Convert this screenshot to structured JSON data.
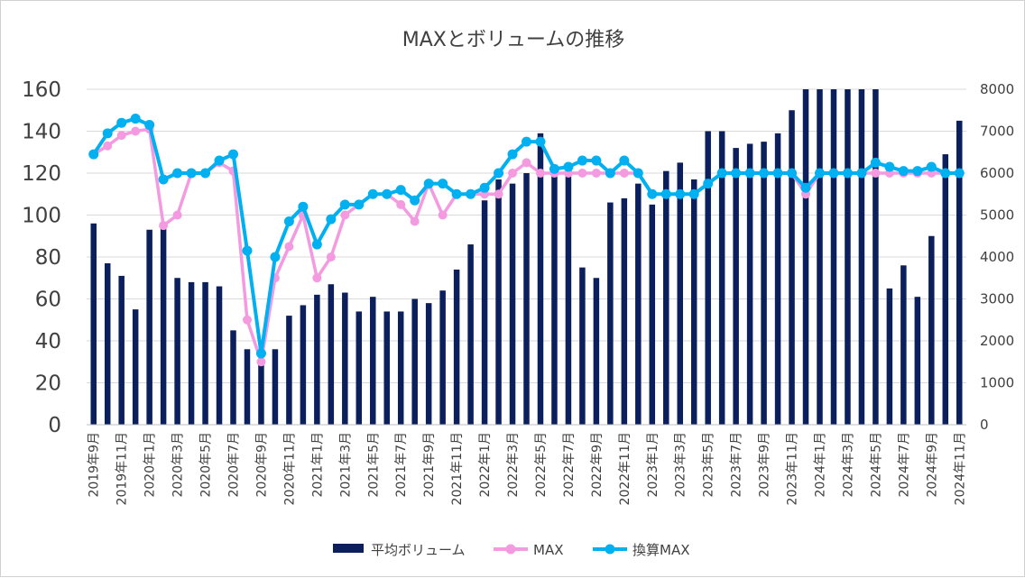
{
  "chart_data": {
    "type": "bar",
    "title": "MAXとボリュームの推移",
    "categories": [
      "2019年9月",
      "2019年10月",
      "2019年11月",
      "2019年12月",
      "2020年1月",
      "2020年2月",
      "2020年3月",
      "2020年4月",
      "2020年5月",
      "2020年6月",
      "2020年7月",
      "2020年8月",
      "2020年9月",
      "2020年10月",
      "2020年11月",
      "2020年12月",
      "2021年1月",
      "2021年2月",
      "2021年3月",
      "2021年4月",
      "2021年5月",
      "2021年6月",
      "2021年7月",
      "2021年8月",
      "2021年9月",
      "2021年10月",
      "2021年11月",
      "2021年12月",
      "2022年1月",
      "2022年2月",
      "2022年3月",
      "2022年4月",
      "2022年5月",
      "2022年6月",
      "2022年7月",
      "2022年8月",
      "2022年9月",
      "2022年10月",
      "2022年11月",
      "2022年12月",
      "2023年1月",
      "2023年2月",
      "2023年3月",
      "2023年4月",
      "2023年5月",
      "2023年6月",
      "2023年7月",
      "2023年8月",
      "2023年9月",
      "2023年10月",
      "2023年11月",
      "2023年12月",
      "2024年1月",
      "2024年2月",
      "2024年3月",
      "2024年4月",
      "2024年5月",
      "2024年6月",
      "2024年7月",
      "2024年8月",
      "2024年9月",
      "2024年10月",
      "2024年11月"
    ],
    "x_tick_labels": [
      "2019年9月",
      "2019年11月",
      "2020年1月",
      "2020年3月",
      "2020年5月",
      "2020年7月",
      "2020年9月",
      "2020年11月",
      "2021年1月",
      "2021年3月",
      "2021年5月",
      "2021年7月",
      "2021年9月",
      "2021年11月",
      "2022年1月",
      "2022年3月",
      "2022年5月",
      "2022年7月",
      "2022年9月",
      "2022年11月",
      "2023年1月",
      "2023年3月",
      "2023年5月",
      "2023年7月",
      "2023年9月",
      "2023年11月",
      "2024年1月",
      "2024年3月",
      "2024年5月",
      "2024年7月",
      "2024年9月",
      "2024年11月"
    ],
    "series": [
      {
        "name": "平均ボリューム",
        "type": "bar",
        "axis": "right",
        "color": "#0b1f5c",
        "values": [
          4800,
          3850,
          3550,
          2750,
          4650,
          4800,
          3500,
          3400,
          3400,
          3300,
          2250,
          1800,
          1450,
          1800,
          2600,
          2850,
          3100,
          3350,
          3150,
          2700,
          3050,
          2700,
          2700,
          3000,
          2900,
          3200,
          3700,
          4300,
          5350,
          5850,
          5750,
          6000,
          6950,
          6200,
          6000,
          3750,
          3500,
          5300,
          5400,
          5750,
          5250,
          6050,
          6250,
          5850,
          7000,
          7000,
          6600,
          6700,
          6750,
          6950,
          7500,
          8000,
          8000,
          8000,
          8000,
          8000,
          8000,
          3250,
          3800,
          3050,
          4500,
          6450,
          7250
        ]
      },
      {
        "name": "MAX",
        "type": "line",
        "axis": "left",
        "color": "#f49ae0",
        "values": [
          129,
          133,
          138,
          140,
          141,
          95,
          100,
          120,
          120,
          125,
          121,
          50,
          30,
          70,
          85,
          100,
          70,
          80,
          100,
          105,
          110,
          110,
          105,
          97,
          115,
          100,
          110,
          110,
          110,
          110,
          120,
          125,
          120,
          120,
          120,
          120,
          120,
          120,
          120,
          120,
          110,
          110,
          110,
          110,
          115,
          120,
          120,
          120,
          120,
          120,
          120,
          110,
          120,
          120,
          120,
          120,
          120,
          120,
          120,
          120,
          120,
          120,
          120
        ]
      },
      {
        "name": "換算MAX",
        "type": "line",
        "axis": "left",
        "color": "#00b0f0",
        "values": [
          129,
          139,
          144,
          146,
          143,
          117,
          120,
          120,
          120,
          126,
          129,
          83,
          34,
          80,
          97,
          104,
          86,
          98,
          105,
          105,
          110,
          110,
          112,
          107,
          115,
          115,
          110,
          110,
          113,
          120,
          129,
          135,
          135,
          122,
          123,
          126,
          126,
          120,
          126,
          120,
          110,
          110,
          110,
          110,
          115,
          120,
          120,
          120,
          120,
          120,
          120,
          113,
          120,
          120,
          120,
          120,
          125,
          123,
          121,
          121,
          123,
          120,
          120
        ]
      }
    ],
    "left_axis": {
      "min": 0,
      "max": 160,
      "ticks": [
        "0",
        "20",
        "40",
        "60",
        "80",
        "100",
        "120",
        "140",
        "160"
      ]
    },
    "right_axis": {
      "min": 0,
      "max": 8000,
      "ticks": [
        "0",
        "1000",
        "2000",
        "3000",
        "4000",
        "5000",
        "6000",
        "7000",
        "8000"
      ]
    },
    "grid": true,
    "legend": {
      "position": "bottom",
      "items": [
        "平均ボリューム",
        "MAX",
        "換算MAX"
      ]
    }
  }
}
